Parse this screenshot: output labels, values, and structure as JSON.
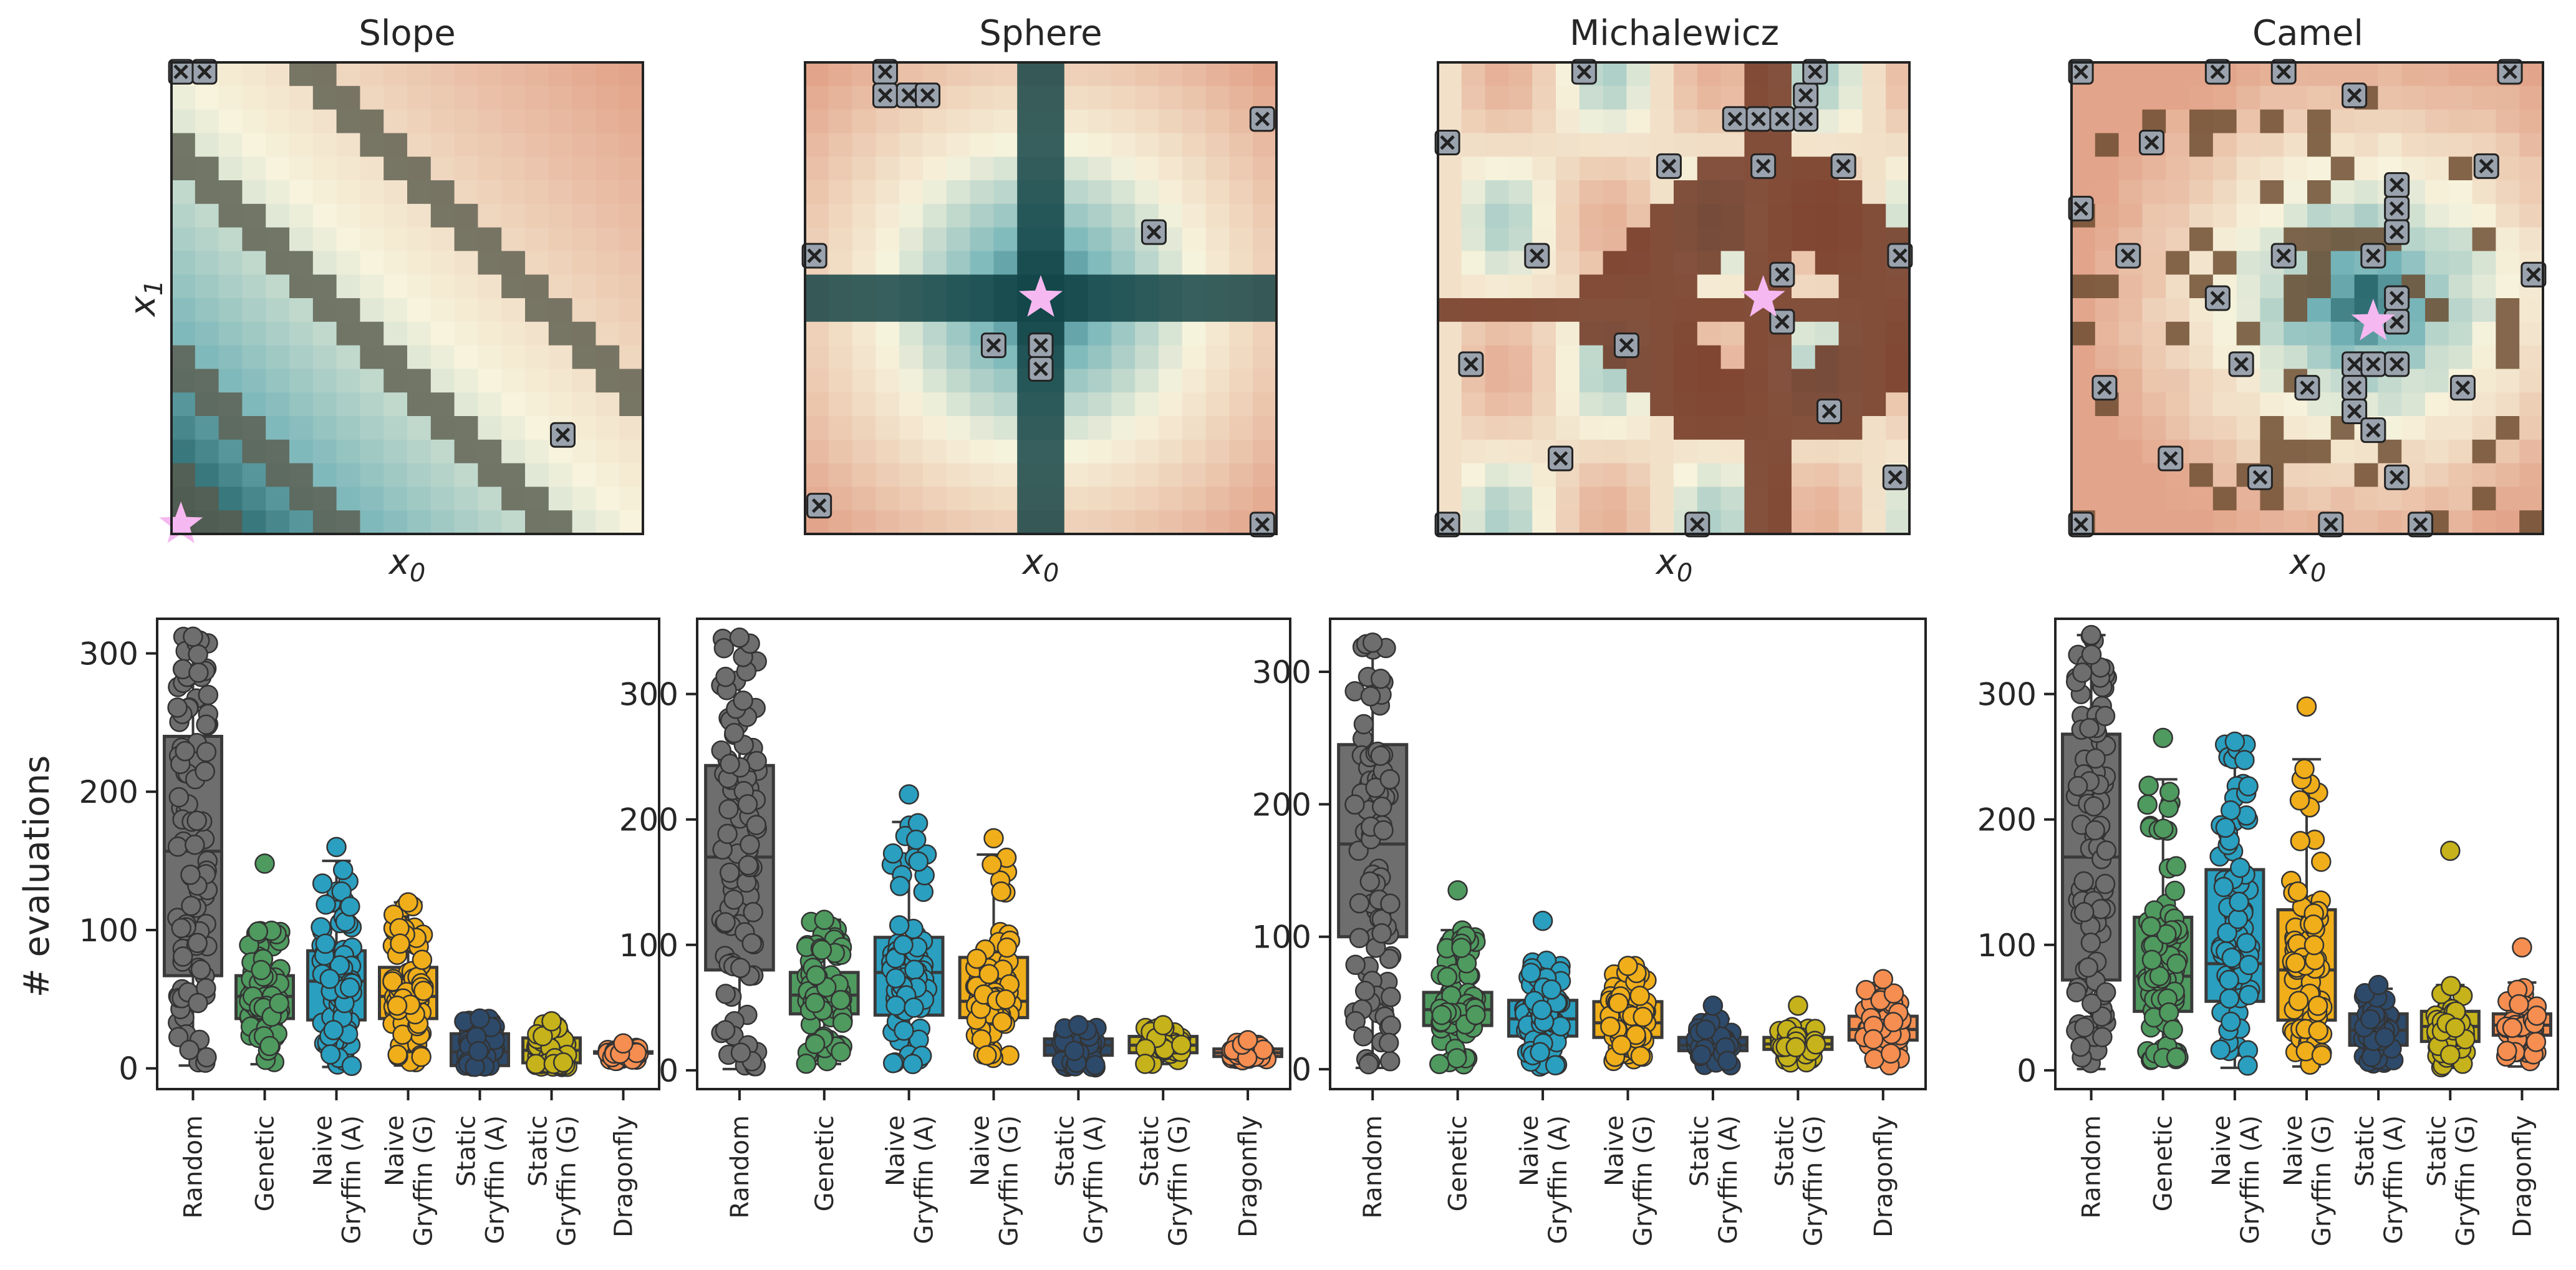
{
  "figure": {
    "y_axis_label": "# evaluations"
  },
  "colors": {
    "box_edge": "#3a3a3a",
    "star": "#f5b8f0",
    "cross": "#9aa3ad",
    "categories": [
      "#6e6e6e",
      "#4f9a5f",
      "#2a9fc0",
      "#f0ae1a",
      "#2d4a6b",
      "#c6b21a",
      "#f58e50"
    ]
  },
  "chart_data": [
    {
      "type": "heatmap",
      "title": "Slope",
      "xlabel": "x0",
      "ylabel": "x1",
      "grid": false
    },
    {
      "type": "heatmap",
      "title": "Sphere",
      "xlabel": "x0",
      "ylabel": "",
      "grid": false
    },
    {
      "type": "heatmap",
      "title": "Michalewicz",
      "xlabel": "x0",
      "ylabel": "",
      "grid": false
    },
    {
      "type": "heatmap",
      "title": "Camel",
      "xlabel": "x0",
      "ylabel": "",
      "grid": false
    },
    {
      "type": "box",
      "benchmark": "Slope",
      "categories": [
        "Random",
        "Genetic",
        "Naive\nGryffin (A)",
        "Naive\nGryffin (G)",
        "Static\nGryffin (A)",
        "Static\nGryffin (G)",
        "Dragonfly"
      ],
      "ylabel": "# evaluations",
      "ylim": [
        -15,
        325
      ],
      "yticks": [
        0,
        100,
        200,
        300
      ],
      "boxes": [
        {
          "whisker_low": 2,
          "q1": 67,
          "median": 157,
          "q3": 240,
          "whisker_high": 312,
          "max": 312
        },
        {
          "whisker_low": 3,
          "q1": 36,
          "median": 52,
          "q3": 67,
          "whisker_high": 101,
          "max": 148
        },
        {
          "whisker_low": 1,
          "q1": 35,
          "median": 63,
          "q3": 85,
          "whisker_high": 150,
          "max": 160
        },
        {
          "whisker_low": 2,
          "q1": 36,
          "median": 52,
          "q3": 73,
          "whisker_high": 120,
          "max": 120
        },
        {
          "whisker_low": 1,
          "q1": 2,
          "median": 12,
          "q3": 25,
          "whisker_high": 36,
          "max": 36
        },
        {
          "whisker_low": 1,
          "q1": 4,
          "median": 13,
          "q3": 22,
          "whisker_high": 34,
          "max": 34
        },
        {
          "whisker_low": 5,
          "q1": 11,
          "median": 11,
          "q3": 12,
          "whisker_high": 15,
          "max": 18
        }
      ]
    },
    {
      "type": "box",
      "benchmark": "Sphere",
      "categories": [
        "Random",
        "Genetic",
        "Naive\nGryffin (A)",
        "Naive\nGryffin (G)",
        "Static\nGryffin (A)",
        "Static\nGryffin (G)",
        "Dragonfly"
      ],
      "ylabel": "",
      "ylim": [
        -15,
        360
      ],
      "yticks": [
        0,
        100,
        200,
        300
      ],
      "boxes": [
        {
          "whisker_low": 1,
          "q1": 80,
          "median": 170,
          "q3": 243,
          "whisker_high": 345,
          "max": 345
        },
        {
          "whisker_low": 5,
          "q1": 45,
          "median": 60,
          "q3": 78,
          "whisker_high": 120,
          "max": 120
        },
        {
          "whisker_low": 5,
          "q1": 44,
          "median": 78,
          "q3": 106,
          "whisker_high": 198,
          "max": 220
        },
        {
          "whisker_low": 8,
          "q1": 42,
          "median": 55,
          "q3": 90,
          "whisker_high": 172,
          "max": 185
        },
        {
          "whisker_low": 2,
          "q1": 12,
          "median": 20,
          "q3": 25,
          "whisker_high": 34,
          "max": 36
        },
        {
          "whisker_low": 5,
          "q1": 14,
          "median": 20,
          "q3": 27,
          "whisker_high": 34,
          "max": 36
        },
        {
          "whisker_low": 8,
          "q1": 11,
          "median": 14,
          "q3": 17,
          "whisker_high": 22,
          "max": 24
        }
      ]
    },
    {
      "type": "box",
      "benchmark": "Michalewicz",
      "categories": [
        "Random",
        "Genetic",
        "Naive\nGryffin (A)",
        "Naive\nGryffin (G)",
        "Static\nGryffin (A)",
        "Static\nGryffin (G)",
        "Dragonfly"
      ],
      "ylabel": "",
      "ylim": [
        -15,
        340
      ],
      "yticks": [
        0,
        100,
        200,
        300
      ],
      "boxes": [
        {
          "whisker_low": 1,
          "q1": 100,
          "median": 170,
          "q3": 245,
          "whisker_high": 322,
          "max": 322
        },
        {
          "whisker_low": 3,
          "q1": 33,
          "median": 45,
          "q3": 58,
          "whisker_high": 105,
          "max": 135
        },
        {
          "whisker_low": 2,
          "q1": 25,
          "median": 38,
          "q3": 52,
          "whisker_high": 82,
          "max": 112
        },
        {
          "whisker_low": 5,
          "q1": 24,
          "median": 35,
          "q3": 51,
          "whisker_high": 78,
          "max": 78
        },
        {
          "whisker_low": 3,
          "q1": 14,
          "median": 18,
          "q3": 24,
          "whisker_high": 38,
          "max": 48
        },
        {
          "whisker_low": 5,
          "q1": 15,
          "median": 19,
          "q3": 24,
          "whisker_high": 32,
          "max": 48
        },
        {
          "whisker_low": 2,
          "q1": 22,
          "median": 30,
          "q3": 40,
          "whisker_high": 62,
          "max": 68
        }
      ]
    },
    {
      "type": "box",
      "benchmark": "Camel",
      "categories": [
        "Random",
        "Genetic",
        "Naive\nGryffin (A)",
        "Naive\nGryffin (G)",
        "Static\nGryffin (A)",
        "Static\nGryffin (G)",
        "Dragonfly"
      ],
      "ylabel": "",
      "ylim": [
        -15,
        360
      ],
      "yticks": [
        0,
        100,
        200,
        300
      ],
      "boxes": [
        {
          "whisker_low": 1,
          "q1": 72,
          "median": 170,
          "q3": 268,
          "whisker_high": 347,
          "max": 347
        },
        {
          "whisker_low": 8,
          "q1": 47,
          "median": 75,
          "q3": 122,
          "whisker_high": 232,
          "max": 265
        },
        {
          "whisker_low": 2,
          "q1": 55,
          "median": 85,
          "q3": 160,
          "whisker_high": 262,
          "max": 262
        },
        {
          "whisker_low": 3,
          "q1": 40,
          "median": 80,
          "q3": 128,
          "whisker_high": 248,
          "max": 290
        },
        {
          "whisker_low": 2,
          "q1": 20,
          "median": 32,
          "q3": 45,
          "whisker_high": 65,
          "max": 68
        },
        {
          "whisker_low": 2,
          "q1": 23,
          "median": 35,
          "q3": 47,
          "whisker_high": 68,
          "max": 175
        },
        {
          "whisker_low": 3,
          "q1": 28,
          "median": 36,
          "q3": 45,
          "whisker_high": 70,
          "max": 98
        }
      ]
    }
  ]
}
